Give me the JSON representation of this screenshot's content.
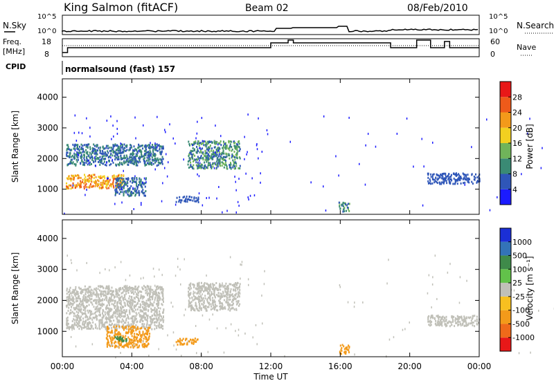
{
  "header": {
    "station": "King Salmon (fitACF)",
    "beam": "Beam 02",
    "date": "08/Feb/2010"
  },
  "top_panel": {
    "nsky_label": "N.Sky",
    "nsky_ticks": [
      "10^5",
      "10^0"
    ],
    "nsearch_label": "N.Search",
    "nsearch_ticks": [
      "10^5",
      "10^0"
    ],
    "freq_label": "Freq.",
    "freq_unit": "[MHz]",
    "freq_ticks": [
      "18",
      "8"
    ],
    "nave_label": "Nave",
    "nave_ticks": [
      "60",
      "0"
    ],
    "cpid_label": "CPID",
    "cpid_text": "normalsound (fast) 157"
  },
  "axes": {
    "ylabel": "Slant Range [km]",
    "xlabel": "Time UT",
    "x_ticks": [
      "00:00",
      "04:00",
      "08:00",
      "12:00",
      "16:00",
      "20:00",
      "00:00"
    ],
    "y_ticks": [
      "1000",
      "2000",
      "3000",
      "4000"
    ],
    "xlim_hours": [
      0,
      24
    ],
    "ylim_km": [
      180,
      4600
    ]
  },
  "power_scale": {
    "label": "Power [dB]",
    "ticks": [
      "4",
      "8",
      "12",
      "16",
      "20",
      "24",
      "28"
    ],
    "colors": [
      "#1b1bff",
      "#2f56b8",
      "#3a8a74",
      "#70b45a",
      "#f2d020",
      "#f39a1a",
      "#ee5a1a",
      "#e81818"
    ]
  },
  "velocity_scale": {
    "label": "Velocity [m s⁻¹]",
    "ticks": [
      "1000",
      "500",
      "100",
      "25",
      "-25",
      "-100",
      "-500",
      "-1000"
    ],
    "colors": [
      "#1b2fd6",
      "#3373b8",
      "#3f8a4a",
      "#62c24a",
      "#c0c0b8",
      "#f7c020",
      "#f39a1a",
      "#ef6a1a",
      "#e81818"
    ]
  },
  "chart_data": [
    {
      "type": "heatmap",
      "title": "",
      "xlabel": "Time UT",
      "ylabel": "Slant Range [km]",
      "colorbar": "Power [dB]",
      "xlim": [
        0,
        24
      ],
      "ylim": [
        180,
        4600
      ],
      "echo_regions": [
        {
          "t": [
            0.2,
            3.5
          ],
          "range_km": [
            1050,
            1500
          ],
          "power_db": [
            16,
            28
          ]
        },
        {
          "t": [
            0.2,
            5.8
          ],
          "range_km": [
            1800,
            2500
          ],
          "power_db": [
            4,
            12
          ]
        },
        {
          "t": [
            3.0,
            4.8
          ],
          "range_km": [
            800,
            1400
          ],
          "power_db": [
            4,
            10
          ]
        },
        {
          "t": [
            7.2,
            10.2
          ],
          "range_km": [
            1700,
            2600
          ],
          "power_db": [
            4,
            16
          ]
        },
        {
          "t": [
            6.5,
            7.8
          ],
          "range_km": [
            600,
            800
          ],
          "power_db": [
            4,
            8
          ]
        },
        {
          "t": [
            15.9,
            16.5
          ],
          "range_km": [
            300,
            600
          ],
          "power_db": [
            4,
            14
          ]
        },
        {
          "t": [
            21.0,
            24.0
          ],
          "range_km": [
            1200,
            1550
          ],
          "power_db": [
            4,
            8
          ]
        }
      ]
    },
    {
      "type": "heatmap",
      "title": "",
      "xlabel": "Time UT",
      "ylabel": "Slant Range [km]",
      "colorbar": "Velocity [m s⁻¹]",
      "xlim": [
        0,
        24
      ],
      "ylim": [
        180,
        4600
      ],
      "echo_regions": [
        {
          "t": [
            0.2,
            5.8
          ],
          "range_km": [
            1100,
            2500
          ],
          "velocity_ms": [
            -25,
            25
          ]
        },
        {
          "t": [
            2.5,
            5.0
          ],
          "range_km": [
            500,
            1200
          ],
          "velocity_ms": [
            -500,
            -100
          ]
        },
        {
          "t": [
            3.0,
            3.7
          ],
          "range_km": [
            700,
            900
          ],
          "velocity_ms": [
            100,
            500
          ]
        },
        {
          "t": [
            7.2,
            10.2
          ],
          "range_km": [
            1700,
            2600
          ],
          "velocity_ms": [
            -25,
            25
          ]
        },
        {
          "t": [
            6.5,
            7.8
          ],
          "range_km": [
            600,
            800
          ],
          "velocity_ms": [
            -500,
            -100
          ]
        },
        {
          "t": [
            15.9,
            16.5
          ],
          "range_km": [
            300,
            600
          ],
          "velocity_ms": [
            -500,
            -100
          ]
        },
        {
          "t": [
            21.0,
            24.0
          ],
          "range_km": [
            1200,
            1550
          ],
          "velocity_ms": [
            -25,
            25
          ]
        }
      ]
    }
  ]
}
